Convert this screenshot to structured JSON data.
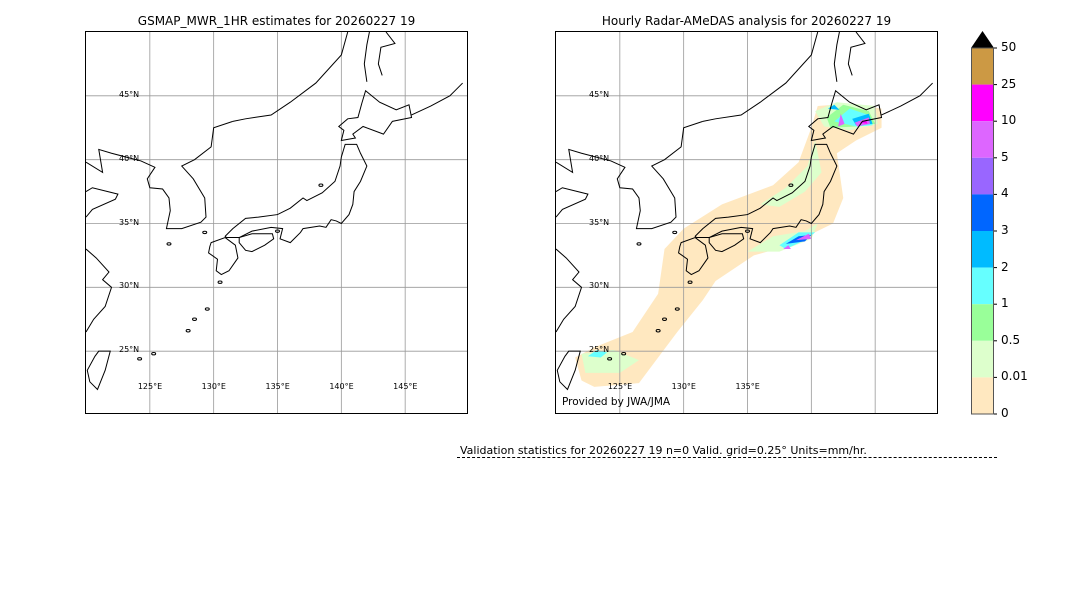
{
  "left_panel": {
    "title": "GSMAP_MWR_1HR estimates for 20260227 19",
    "lat_labels": [
      "45°N",
      "40°N",
      "35°N",
      "30°N",
      "25°N"
    ],
    "lon_labels": [
      "125°E",
      "130°E",
      "135°E",
      "140°E",
      "145°E"
    ]
  },
  "right_panel": {
    "title": "Hourly Radar-AMeDAS analysis for 20260227 19",
    "lat_labels": [
      "45°N",
      "40°N",
      "35°N",
      "30°N",
      "25°N"
    ],
    "lon_labels": [
      "125°E",
      "130°E",
      "135°E"
    ],
    "credit": "Provided by JWA/JMA"
  },
  "colorbar": {
    "labels": [
      "50",
      "25",
      "10",
      "5",
      "4",
      "3",
      "2",
      "1",
      "0.5",
      "0.01",
      "0"
    ],
    "colors": [
      "#cc9944",
      "#ff00ff",
      "#dd66ff",
      "#9966ff",
      "#0066ff",
      "#00bbff",
      "#66ffff",
      "#99ff99",
      "#ddffcc",
      "#ffe8c0"
    ],
    "extend_color": "#000000"
  },
  "stats": {
    "text": "Validation statistics for 20260227 19  n=0 Valid. grid=0.25° Units=mm/hr."
  }
}
